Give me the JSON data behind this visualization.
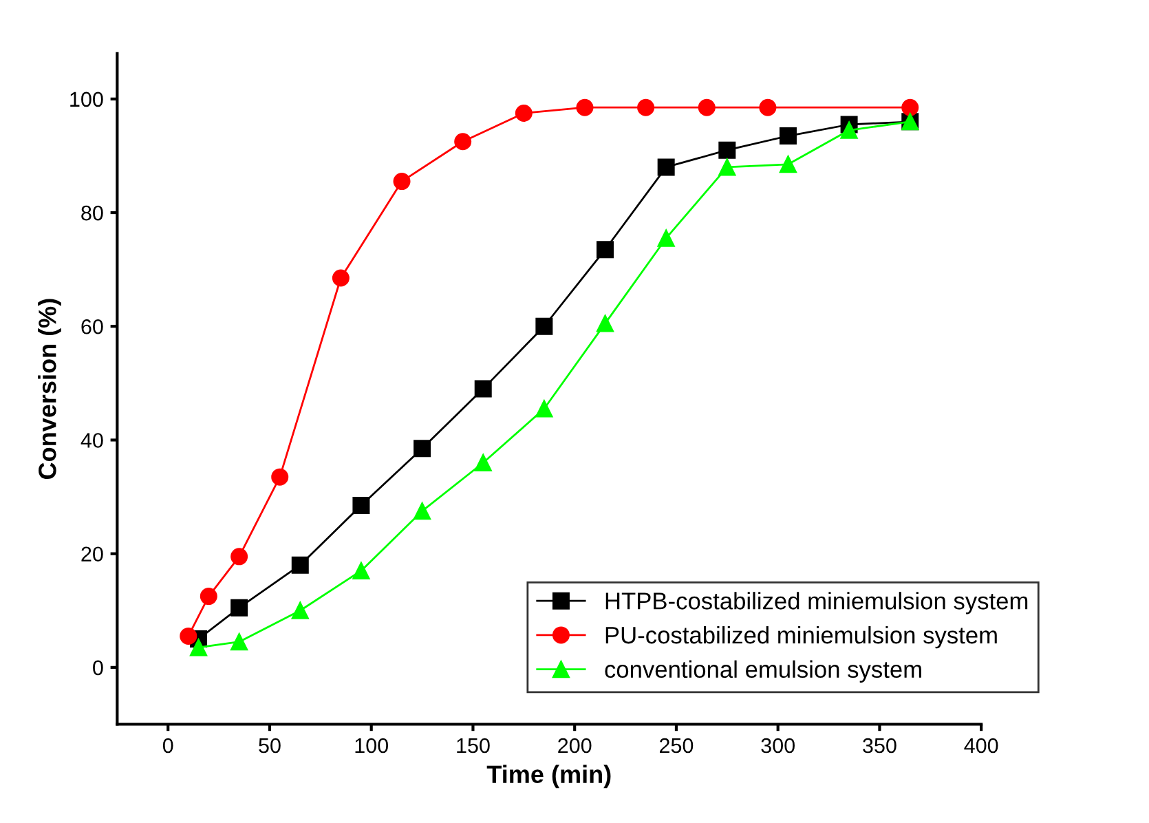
{
  "chart_data": {
    "type": "line",
    "xlabel": "Time (min)",
    "ylabel": "Conversion (%)",
    "xlim": [
      -25,
      400
    ],
    "xticks": [
      0,
      50,
      100,
      150,
      200,
      250,
      300,
      350,
      400
    ],
    "ylim": [
      -10,
      108
    ],
    "yticks": [
      0,
      20,
      40,
      60,
      80,
      100
    ],
    "grid": false,
    "legend": "bottom right",
    "line_style": "solid",
    "series": [
      {
        "name": "HTPB-costabilized miniemulsion system",
        "color": "#000000",
        "marker": "square",
        "x": [
          15,
          35,
          65,
          95,
          125,
          155,
          185,
          215,
          245,
          275,
          305,
          335,
          365
        ],
        "values": [
          5,
          10.5,
          18,
          28.5,
          38.5,
          49,
          60,
          73.5,
          88,
          91,
          93.5,
          95.5,
          96
        ]
      },
      {
        "name": "PU-costabilized miniemulsion system",
        "color": "#ff0000",
        "marker": "circle",
        "x": [
          10,
          20,
          35,
          55,
          85,
          115,
          145,
          175,
          205,
          235,
          265,
          295,
          365
        ],
        "values": [
          5.5,
          12.5,
          19.5,
          33.5,
          68.5,
          85.5,
          92.5,
          97.5,
          98.5,
          98.5,
          98.5,
          98.5,
          98.5
        ]
      },
      {
        "name": "conventional emulsion system",
        "color": "#00ff00",
        "marker": "triangle",
        "x": [
          15,
          35,
          65,
          95,
          125,
          155,
          185,
          215,
          245,
          275,
          305,
          335,
          365
        ],
        "values": [
          3.5,
          4.5,
          10,
          17,
          27.5,
          36,
          45.5,
          60.5,
          75.5,
          88,
          88.5,
          94.5,
          96
        ]
      }
    ]
  }
}
